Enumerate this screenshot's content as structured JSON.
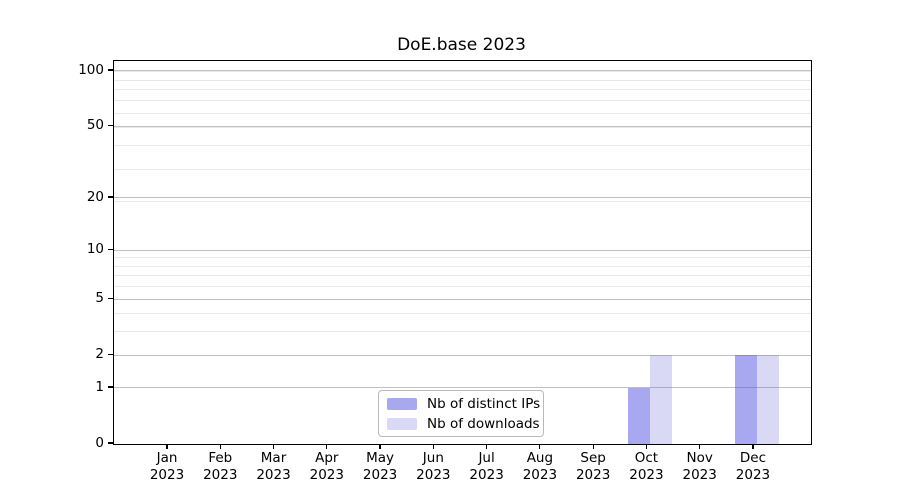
{
  "chart_data": {
    "type": "bar",
    "title": "DoE.base 2023",
    "categories": [
      {
        "month": "Jan",
        "year": "2023"
      },
      {
        "month": "Feb",
        "year": "2023"
      },
      {
        "month": "Mar",
        "year": "2023"
      },
      {
        "month": "Apr",
        "year": "2023"
      },
      {
        "month": "May",
        "year": "2023"
      },
      {
        "month": "Jun",
        "year": "2023"
      },
      {
        "month": "Jul",
        "year": "2023"
      },
      {
        "month": "Aug",
        "year": "2023"
      },
      {
        "month": "Sep",
        "year": "2023"
      },
      {
        "month": "Oct",
        "year": "2023"
      },
      {
        "month": "Nov",
        "year": "2023"
      },
      {
        "month": "Dec",
        "year": "2023"
      }
    ],
    "series": [
      {
        "name": "Nb of distinct IPs",
        "color": "#a8a8f0",
        "values": [
          0,
          0,
          0,
          0,
          0,
          0,
          0,
          0,
          0,
          1,
          0,
          2
        ]
      },
      {
        "name": "Nb of downloads",
        "color": "#d9d9f6",
        "values": [
          0,
          0,
          0,
          0,
          0,
          0,
          0,
          0,
          0,
          2,
          0,
          2
        ]
      }
    ],
    "yticks": [
      0,
      1,
      2,
      5,
      10,
      20,
      50,
      100
    ],
    "minor_gridlines": [
      3,
      4,
      6,
      7,
      8,
      9,
      19,
      29,
      39,
      49,
      59,
      69,
      79,
      89,
      99
    ],
    "scale": "log1p",
    "ylim": [
      0,
      113
    ],
    "xlabel": "",
    "ylabel": "",
    "grid": "horizontal",
    "legend_position": "inside-bottom-center"
  }
}
